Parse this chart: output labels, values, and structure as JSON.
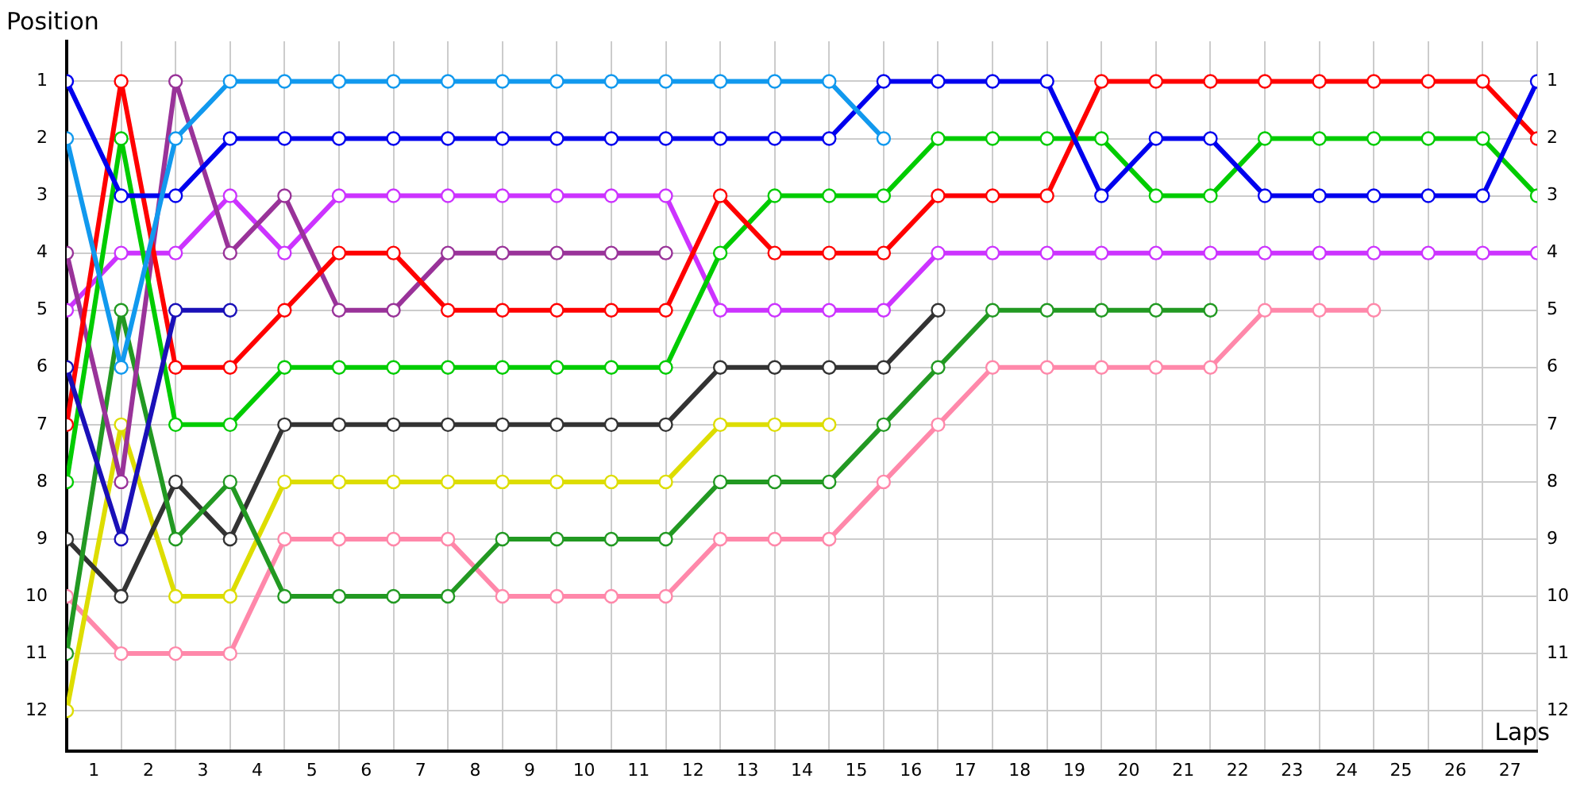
{
  "chart_data": {
    "type": "line",
    "xlabel": "Laps",
    "ylabel": "Position",
    "x": [
      0,
      1,
      2,
      3,
      4,
      5,
      6,
      7,
      8,
      9,
      10,
      11,
      12,
      13,
      14,
      15,
      16,
      17,
      18,
      19,
      20,
      21,
      22,
      23,
      24,
      25,
      26,
      27
    ],
    "xlim": [
      0,
      27
    ],
    "xticks": [
      {
        "value": 0.5,
        "label": "1"
      },
      {
        "value": 1.5,
        "label": "2"
      },
      {
        "value": 2.5,
        "label": "3"
      },
      {
        "value": 3.5,
        "label": "4"
      },
      {
        "value": 4.5,
        "label": "5"
      },
      {
        "value": 5.5,
        "label": "6"
      },
      {
        "value": 6.5,
        "label": "7"
      },
      {
        "value": 7.5,
        "label": "8"
      },
      {
        "value": 8.5,
        "label": "9"
      },
      {
        "value": 9.5,
        "label": "10"
      },
      {
        "value": 10.5,
        "label": "11"
      },
      {
        "value": 11.5,
        "label": "12"
      },
      {
        "value": 12.5,
        "label": "13"
      },
      {
        "value": 13.5,
        "label": "14"
      },
      {
        "value": 14.5,
        "label": "15"
      },
      {
        "value": 15.5,
        "label": "16"
      },
      {
        "value": 16.5,
        "label": "17"
      },
      {
        "value": 17.5,
        "label": "18"
      },
      {
        "value": 18.5,
        "label": "19"
      },
      {
        "value": 19.5,
        "label": "20"
      },
      {
        "value": 20.5,
        "label": "21"
      },
      {
        "value": 21.5,
        "label": "22"
      },
      {
        "value": 22.5,
        "label": "23"
      },
      {
        "value": 23.5,
        "label": "24"
      },
      {
        "value": 24.5,
        "label": "25"
      },
      {
        "value": 25.5,
        "label": "26"
      },
      {
        "value": 26.5,
        "label": "27"
      }
    ],
    "ylim": [
      12.7,
      0.3
    ],
    "yticks": [
      1,
      2,
      3,
      4,
      5,
      6,
      7,
      8,
      9,
      10,
      11,
      12
    ],
    "y2lim": [
      12.7,
      0.3
    ],
    "y2ticks": [
      1,
      2,
      3,
      4,
      5,
      6,
      7,
      8,
      9,
      10,
      11,
      12
    ],
    "grid": true,
    "legend": false,
    "marker": "circle",
    "line_style": "solid",
    "series": [
      {
        "color": "#1199ee",
        "values": [
          2,
          6,
          2,
          1,
          1,
          1,
          1,
          1,
          1,
          1,
          1,
          1,
          1,
          1,
          1,
          2,
          null,
          null,
          null,
          null,
          null,
          null,
          null,
          null,
          null,
          null,
          null,
          null
        ]
      },
      {
        "color": "#0000ee",
        "values": [
          1,
          3,
          3,
          2,
          2,
          2,
          2,
          2,
          2,
          2,
          2,
          2,
          2,
          2,
          2,
          1,
          1,
          1,
          1,
          3,
          2,
          2,
          3,
          3,
          3,
          3,
          3,
          1
        ]
      },
      {
        "color": "#1a10b8",
        "values": [
          6,
          9,
          5,
          5,
          null,
          null,
          null,
          null,
          null,
          null,
          null,
          null,
          null,
          null,
          null,
          null,
          null,
          null,
          null,
          null,
          null,
          null,
          null,
          null,
          null,
          null,
          null,
          null
        ]
      },
      {
        "color": "#ff0000",
        "values": [
          7,
          1,
          6,
          6,
          5,
          4,
          4,
          5,
          5,
          5,
          5,
          5,
          3,
          4,
          4,
          4,
          3,
          3,
          3,
          1,
          1,
          1,
          1,
          1,
          1,
          1,
          1,
          2
        ]
      },
      {
        "color": "#00cc00",
        "values": [
          8,
          2,
          7,
          7,
          6,
          6,
          6,
          6,
          6,
          6,
          6,
          6,
          4,
          3,
          3,
          3,
          2,
          2,
          2,
          2,
          3,
          3,
          2,
          2,
          2,
          2,
          2,
          3
        ]
      },
      {
        "color": "#993399",
        "values": [
          4,
          8,
          1,
          4,
          3,
          5,
          5,
          4,
          4,
          4,
          4,
          4,
          null,
          null,
          null,
          null,
          null,
          null,
          null,
          null,
          null,
          null,
          null,
          null,
          null,
          null,
          null,
          null
        ]
      },
      {
        "color": "#cc33ff",
        "values": [
          5,
          4,
          4,
          3,
          4,
          3,
          3,
          3,
          3,
          3,
          3,
          3,
          5,
          5,
          5,
          5,
          4,
          4,
          4,
          4,
          4,
          4,
          4,
          4,
          4,
          4,
          4,
          4
        ]
      },
      {
        "color": "#229922",
        "values": [
          11,
          5,
          9,
          8,
          10,
          10,
          10,
          10,
          9,
          9,
          9,
          9,
          8,
          8,
          8,
          7,
          6,
          5,
          5,
          5,
          5,
          5,
          null,
          null,
          null,
          null,
          null,
          null
        ]
      },
      {
        "color": "#333333",
        "values": [
          9,
          10,
          8,
          9,
          7,
          7,
          7,
          7,
          7,
          7,
          7,
          7,
          6,
          6,
          6,
          6,
          5,
          null,
          null,
          null,
          null,
          null,
          null,
          null,
          null,
          null,
          null,
          null
        ]
      },
      {
        "color": "#dddd00",
        "values": [
          12,
          7,
          10,
          10,
          8,
          8,
          8,
          8,
          8,
          8,
          8,
          8,
          7,
          7,
          7,
          null,
          null,
          null,
          null,
          null,
          null,
          null,
          null,
          null,
          null,
          null,
          null,
          null
        ]
      },
      {
        "color": "#ff88aa",
        "values": [
          10,
          11,
          11,
          11,
          9,
          9,
          9,
          9,
          10,
          10,
          10,
          10,
          9,
          9,
          9,
          8,
          7,
          6,
          6,
          6,
          6,
          6,
          5,
          5,
          5,
          null,
          null,
          null
        ]
      }
    ]
  }
}
